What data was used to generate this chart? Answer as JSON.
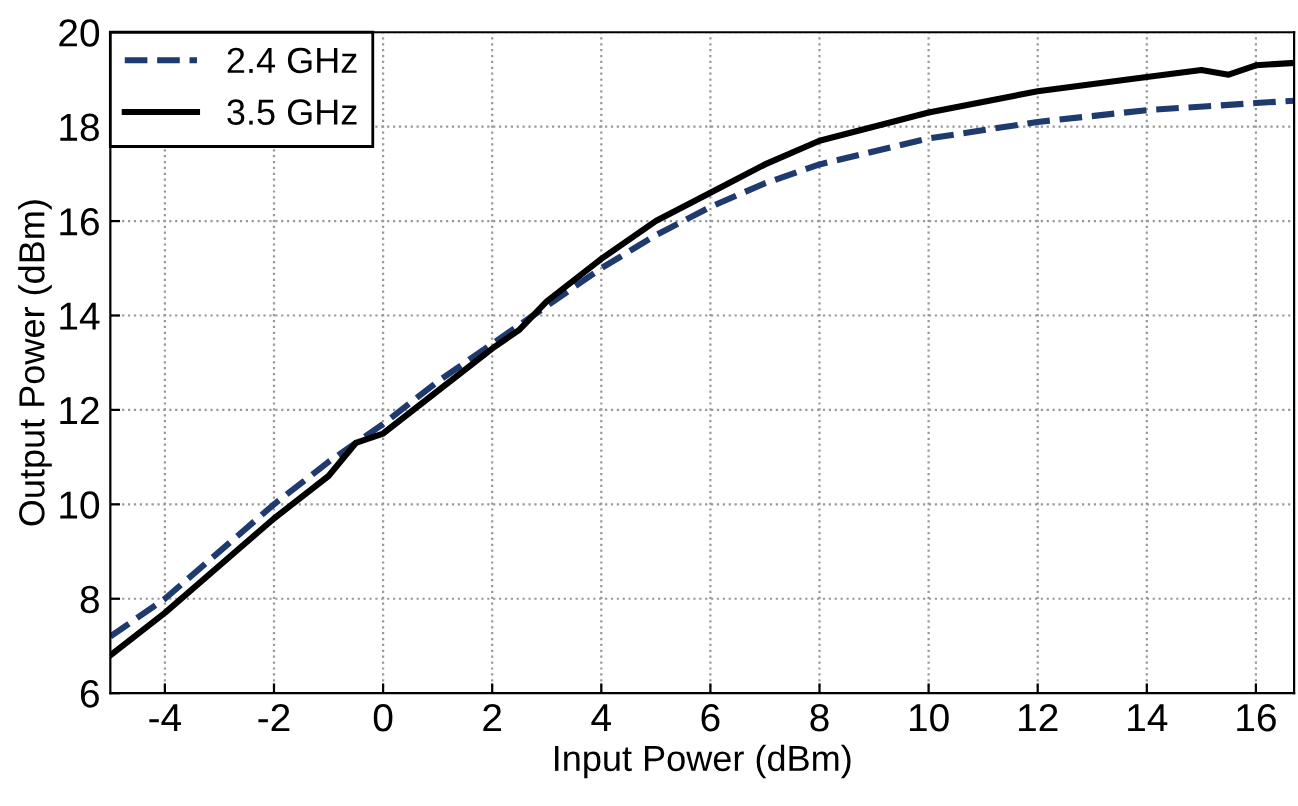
{
  "chart_data": {
    "type": "line",
    "xlabel": "Input Power (dBm)",
    "ylabel": "Output Power (dBm)",
    "xlim": [
      -5,
      16.7
    ],
    "ylim": [
      6,
      20
    ],
    "xticks": [
      -4,
      -2,
      0,
      2,
      4,
      6,
      8,
      10,
      12,
      14,
      16
    ],
    "yticks": [
      6,
      8,
      10,
      12,
      14,
      16,
      18,
      20
    ],
    "grid": true,
    "legend": "top left",
    "marker": "none",
    "series": [
      {
        "name": "2.4 GHz",
        "color": "#1f3a6e",
        "line_style": "dashed",
        "x": [
          -5,
          -4,
          -2,
          -1,
          0,
          1,
          2,
          3,
          4,
          5,
          6,
          7,
          8,
          10,
          12,
          14,
          16,
          16.7
        ],
        "values": [
          7.2,
          8.0,
          10.0,
          10.9,
          11.7,
          12.6,
          13.4,
          14.2,
          15.0,
          15.7,
          16.3,
          16.8,
          17.2,
          17.75,
          18.1,
          18.35,
          18.5,
          18.55
        ]
      },
      {
        "name": "3.5 GHz",
        "color": "#000000",
        "line_style": "solid",
        "x": [
          -5,
          -4,
          -2,
          -1,
          -0.5,
          0,
          1,
          2,
          2.5,
          3,
          4,
          5,
          6,
          7,
          8,
          10,
          12,
          14,
          15,
          15.5,
          16,
          16.7
        ],
        "values": [
          6.8,
          7.7,
          9.7,
          10.6,
          11.3,
          11.5,
          12.4,
          13.3,
          13.7,
          14.3,
          15.2,
          16.0,
          16.6,
          17.2,
          17.7,
          18.3,
          18.75,
          19.05,
          19.2,
          19.1,
          19.3,
          19.35
        ]
      }
    ]
  }
}
